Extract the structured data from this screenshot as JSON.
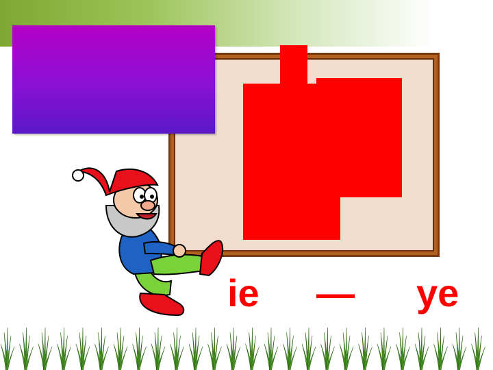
{
  "syllables": {
    "left": "ie",
    "dash": "—",
    "right": "ye"
  },
  "colors": {
    "character_tiles": "#ff0000",
    "syllable_text": "#ff0000",
    "purple_box_top": "#b400c8",
    "purple_box_bottom": "#5a18c8",
    "board_frame": "#b0601f",
    "board_fill": "#f2dccd",
    "top_band": "#7ea833",
    "grass": "#4e9a2a"
  },
  "illustrations": {
    "mascot": "gnome-mascot",
    "ground": "grass-strip"
  }
}
